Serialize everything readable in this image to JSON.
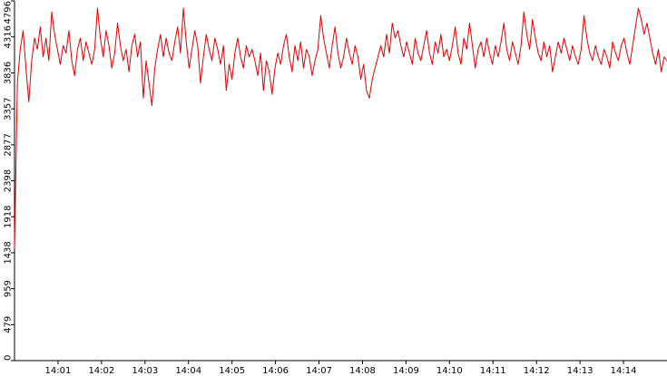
{
  "chart_data": {
    "type": "line",
    "title": "",
    "xlabel": "",
    "ylabel": "",
    "ylim": [
      0,
      4796
    ],
    "yticks": [
      0,
      479,
      959,
      1438,
      1918,
      2398,
      2877,
      3357,
      3836,
      4316,
      4796
    ],
    "ytick_labels": [
      "0",
      "479",
      "959",
      "1438",
      "1918",
      "2398",
      "2877",
      "3357",
      "3836",
      "4316",
      "4796"
    ],
    "xlim": [
      "14:00:00",
      "14:15:00"
    ],
    "xticks": [
      "14:01",
      "14:02",
      "14:03",
      "14:04",
      "14:05",
      "14:06",
      "14:07",
      "14:08",
      "14:09",
      "14:10",
      "14:11",
      "14:12",
      "14:13",
      "14:14"
    ],
    "grid": false,
    "legend": "none",
    "series": [
      {
        "color": "#e00000",
        "x_start": "14:00:00",
        "x_end": "14:15:00",
        "values": [
          1500,
          3700,
          4150,
          4400,
          3900,
          3450,
          4000,
          4300,
          4150,
          4450,
          4050,
          4300,
          4000,
          4650,
          4350,
          4150,
          3950,
          4200,
          4100,
          4400,
          4000,
          3800,
          4150,
          4300,
          4000,
          4250,
          4100,
          3950,
          4150,
          4700,
          4300,
          4050,
          4400,
          4200,
          3900,
          4100,
          4500,
          4200,
          4000,
          4150,
          3850,
          4200,
          4350,
          4050,
          4250,
          3500,
          4000,
          3700,
          3400,
          3900,
          4150,
          4350,
          4050,
          4300,
          4100,
          4000,
          4250,
          4450,
          4100,
          4700,
          4250,
          3900,
          4150,
          4400,
          4200,
          3700,
          4050,
          4350,
          4150,
          4000,
          4300,
          4150,
          3950,
          4200,
          3600,
          3950,
          3750,
          4100,
          4300,
          4050,
          3900,
          4200,
          4050,
          4150,
          4000,
          3800,
          4100,
          3600,
          4000,
          3850,
          3550,
          3900,
          4100,
          3950,
          4200,
          4350,
          4050,
          3850,
          4200,
          4000,
          4250,
          3900,
          4150,
          4050,
          3800,
          4000,
          4150,
          4600,
          4300,
          4100,
          3900,
          4200,
          4450,
          4100,
          3900,
          4050,
          4300,
          4100,
          3950,
          4200,
          4050,
          3750,
          3950,
          3600,
          3500,
          3750,
          3900,
          4050,
          4200,
          4050,
          4350,
          4100,
          4500,
          4300,
          4400,
          4200,
          4050,
          4250,
          4100,
          3950,
          4300,
          4100,
          4000,
          4200,
          4400,
          4100,
          3950,
          4250,
          4100,
          4350,
          4050,
          4150,
          4000,
          4200,
          4450,
          4100,
          3950,
          4300,
          4150,
          4500,
          4200,
          3900,
          4150,
          4250,
          4050,
          4300,
          4100,
          3950,
          4200,
          4050,
          4250,
          4500,
          4150,
          4000,
          4250,
          4100,
          3950,
          4200,
          4650,
          4350,
          4150,
          4550,
          4300,
          4100,
          4000,
          4250,
          4050,
          4200,
          3850,
          4050,
          4250,
          4100,
          4300,
          4150,
          4000,
          4200,
          4050,
          3950,
          4150,
          4600,
          4300,
          4100,
          4000,
          4200,
          4050,
          3950,
          4150,
          4050,
          3900,
          4250,
          4100,
          4000,
          4200,
          4300,
          4100,
          3950,
          4200,
          4450,
          4700,
          4550,
          4350,
          4500,
          4300,
          4100,
          3950,
          4150,
          3850,
          4050,
          4000
        ]
      }
    ]
  }
}
